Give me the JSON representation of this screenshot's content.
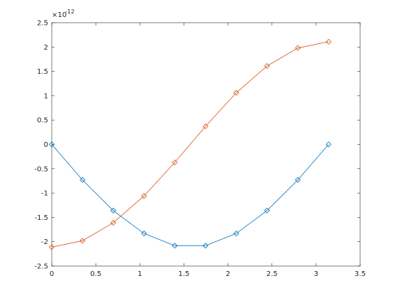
{
  "chart_data": {
    "type": "line",
    "y_multiplier": {
      "base": "×10",
      "exponent": "-12"
    },
    "x": [
      0,
      0.349,
      0.698,
      1.047,
      1.396,
      1.745,
      2.094,
      2.443,
      2.793,
      3.142
    ],
    "series": [
      {
        "color": "#0072bd",
        "marker": "diamond",
        "values": [
          0,
          -0.73,
          -1.36,
          -1.83,
          -2.08,
          -2.08,
          -1.83,
          -1.36,
          -0.73,
          0
        ]
      },
      {
        "color": "#d95319",
        "marker": "diamond",
        "values": [
          -2.11,
          -1.98,
          -1.61,
          -1.06,
          -0.37,
          0.37,
          1.06,
          1.61,
          1.98,
          2.11
        ]
      }
    ],
    "xlim": [
      0,
      3.5
    ],
    "xticks": [
      0,
      0.5,
      1,
      1.5,
      2,
      2.5,
      3,
      3.5
    ],
    "ylim": [
      -2.5,
      2.5
    ],
    "yticks": [
      -2.5,
      -2,
      -1.5,
      -1,
      -0.5,
      0,
      0.5,
      1,
      1.5,
      2,
      2.5
    ],
    "grid": false
  }
}
